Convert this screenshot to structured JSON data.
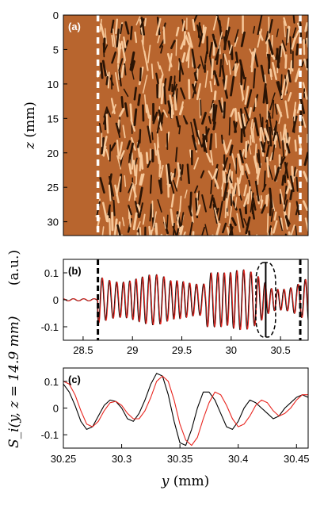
{
  "chart_data": [
    {
      "panel": "(a)",
      "type": "heatmap",
      "ylabel_var": "z",
      "ylabel_unit": "(mm)",
      "ylim": [
        0,
        32
      ],
      "yticks": [
        0,
        5,
        10,
        15,
        20,
        25,
        30
      ],
      "colors": {
        "smooth": "#b8652e",
        "dark": "#2a1405",
        "light": "#f6c89a",
        "marker": "#ffffff"
      },
      "description_of_pattern": "",
      "markers": "dashed vertical lines at y = 28.65 mm and y = 30.7 mm"
    },
    {
      "panel": "(b)",
      "type": "line",
      "ylabel_prefix": "(a.u.)",
      "xlim": [
        28.3,
        30.78
      ],
      "ylim": [
        -0.15,
        0.15
      ],
      "xticks": [
        28.5,
        29,
        29.5,
        30,
        30.5
      ],
      "yticks": [
        -0.1,
        0,
        0.1
      ],
      "markers_x": [
        28.65,
        30.7
      ],
      "zoom_box_x": [
        30.25,
        30.45
      ],
      "series": [
        {
          "color": "#000000"
        },
        {
          "color": "#e8251f"
        }
      ]
    },
    {
      "panel": "(c)",
      "type": "line",
      "xlabel_var": "y",
      "xlabel_unit": "(mm)",
      "xlim": [
        30.25,
        30.46
      ],
      "ylim": [
        -0.15,
        0.15
      ],
      "xticks": [
        30.25,
        30.3,
        30.35,
        30.4,
        30.45
      ],
      "yticks": [
        -0.1,
        0,
        0.1
      ],
      "series": [
        {
          "color": "#000000",
          "x": [
            30.25,
            30.255,
            30.26,
            30.265,
            30.27,
            30.275,
            30.28,
            30.285,
            30.29,
            30.295,
            30.3,
            30.305,
            30.31,
            30.315,
            30.32,
            30.325,
            30.33,
            30.335,
            30.34,
            30.345,
            30.35,
            30.355,
            30.36,
            30.365,
            30.37,
            30.375,
            30.38,
            30.385,
            30.39,
            30.395,
            30.4,
            30.405,
            30.41,
            30.415,
            30.42,
            30.425,
            30.43,
            30.435,
            30.44,
            30.445,
            30.45,
            30.455,
            30.46
          ],
          "y": [
            0.09,
            0.06,
            0.01,
            -0.05,
            -0.08,
            -0.07,
            -0.03,
            0.01,
            0.03,
            0.025,
            0.0,
            -0.04,
            -0.05,
            -0.02,
            0.03,
            0.09,
            0.13,
            0.12,
            0.05,
            -0.05,
            -0.13,
            -0.14,
            -0.08,
            0.0,
            0.06,
            0.06,
            0.03,
            -0.02,
            -0.07,
            -0.08,
            -0.05,
            0.0,
            0.03,
            0.02,
            0.0,
            -0.02,
            -0.04,
            -0.03,
            0.0,
            0.02,
            0.04,
            0.05,
            0.04
          ]
        },
        {
          "color": "#e8251f",
          "x": [
            30.25,
            30.255,
            30.26,
            30.265,
            30.27,
            30.275,
            30.28,
            30.285,
            30.29,
            30.295,
            30.3,
            30.305,
            30.31,
            30.315,
            30.32,
            30.325,
            30.33,
            30.335,
            30.34,
            30.345,
            30.35,
            30.355,
            30.36,
            30.365,
            30.37,
            30.375,
            30.38,
            30.385,
            30.39,
            30.395,
            30.4,
            30.405,
            30.41,
            30.415,
            30.42,
            30.425,
            30.43,
            30.435,
            30.44,
            30.445,
            30.45,
            30.455,
            30.46
          ],
          "y": [
            0.1,
            0.09,
            0.05,
            -0.01,
            -0.06,
            -0.07,
            -0.05,
            -0.01,
            0.02,
            0.025,
            0.01,
            -0.02,
            -0.04,
            -0.04,
            -0.01,
            0.04,
            0.1,
            0.12,
            0.1,
            0.03,
            -0.06,
            -0.12,
            -0.14,
            -0.11,
            -0.04,
            0.02,
            0.06,
            0.05,
            0.01,
            -0.04,
            -0.07,
            -0.06,
            -0.03,
            0.01,
            0.03,
            0.02,
            -0.01,
            -0.03,
            -0.02,
            0.0,
            0.03,
            0.05,
            0.05
          ]
        }
      ]
    }
  ],
  "shared_ylabel": "S_i(y, z = 14.9 mm)"
}
